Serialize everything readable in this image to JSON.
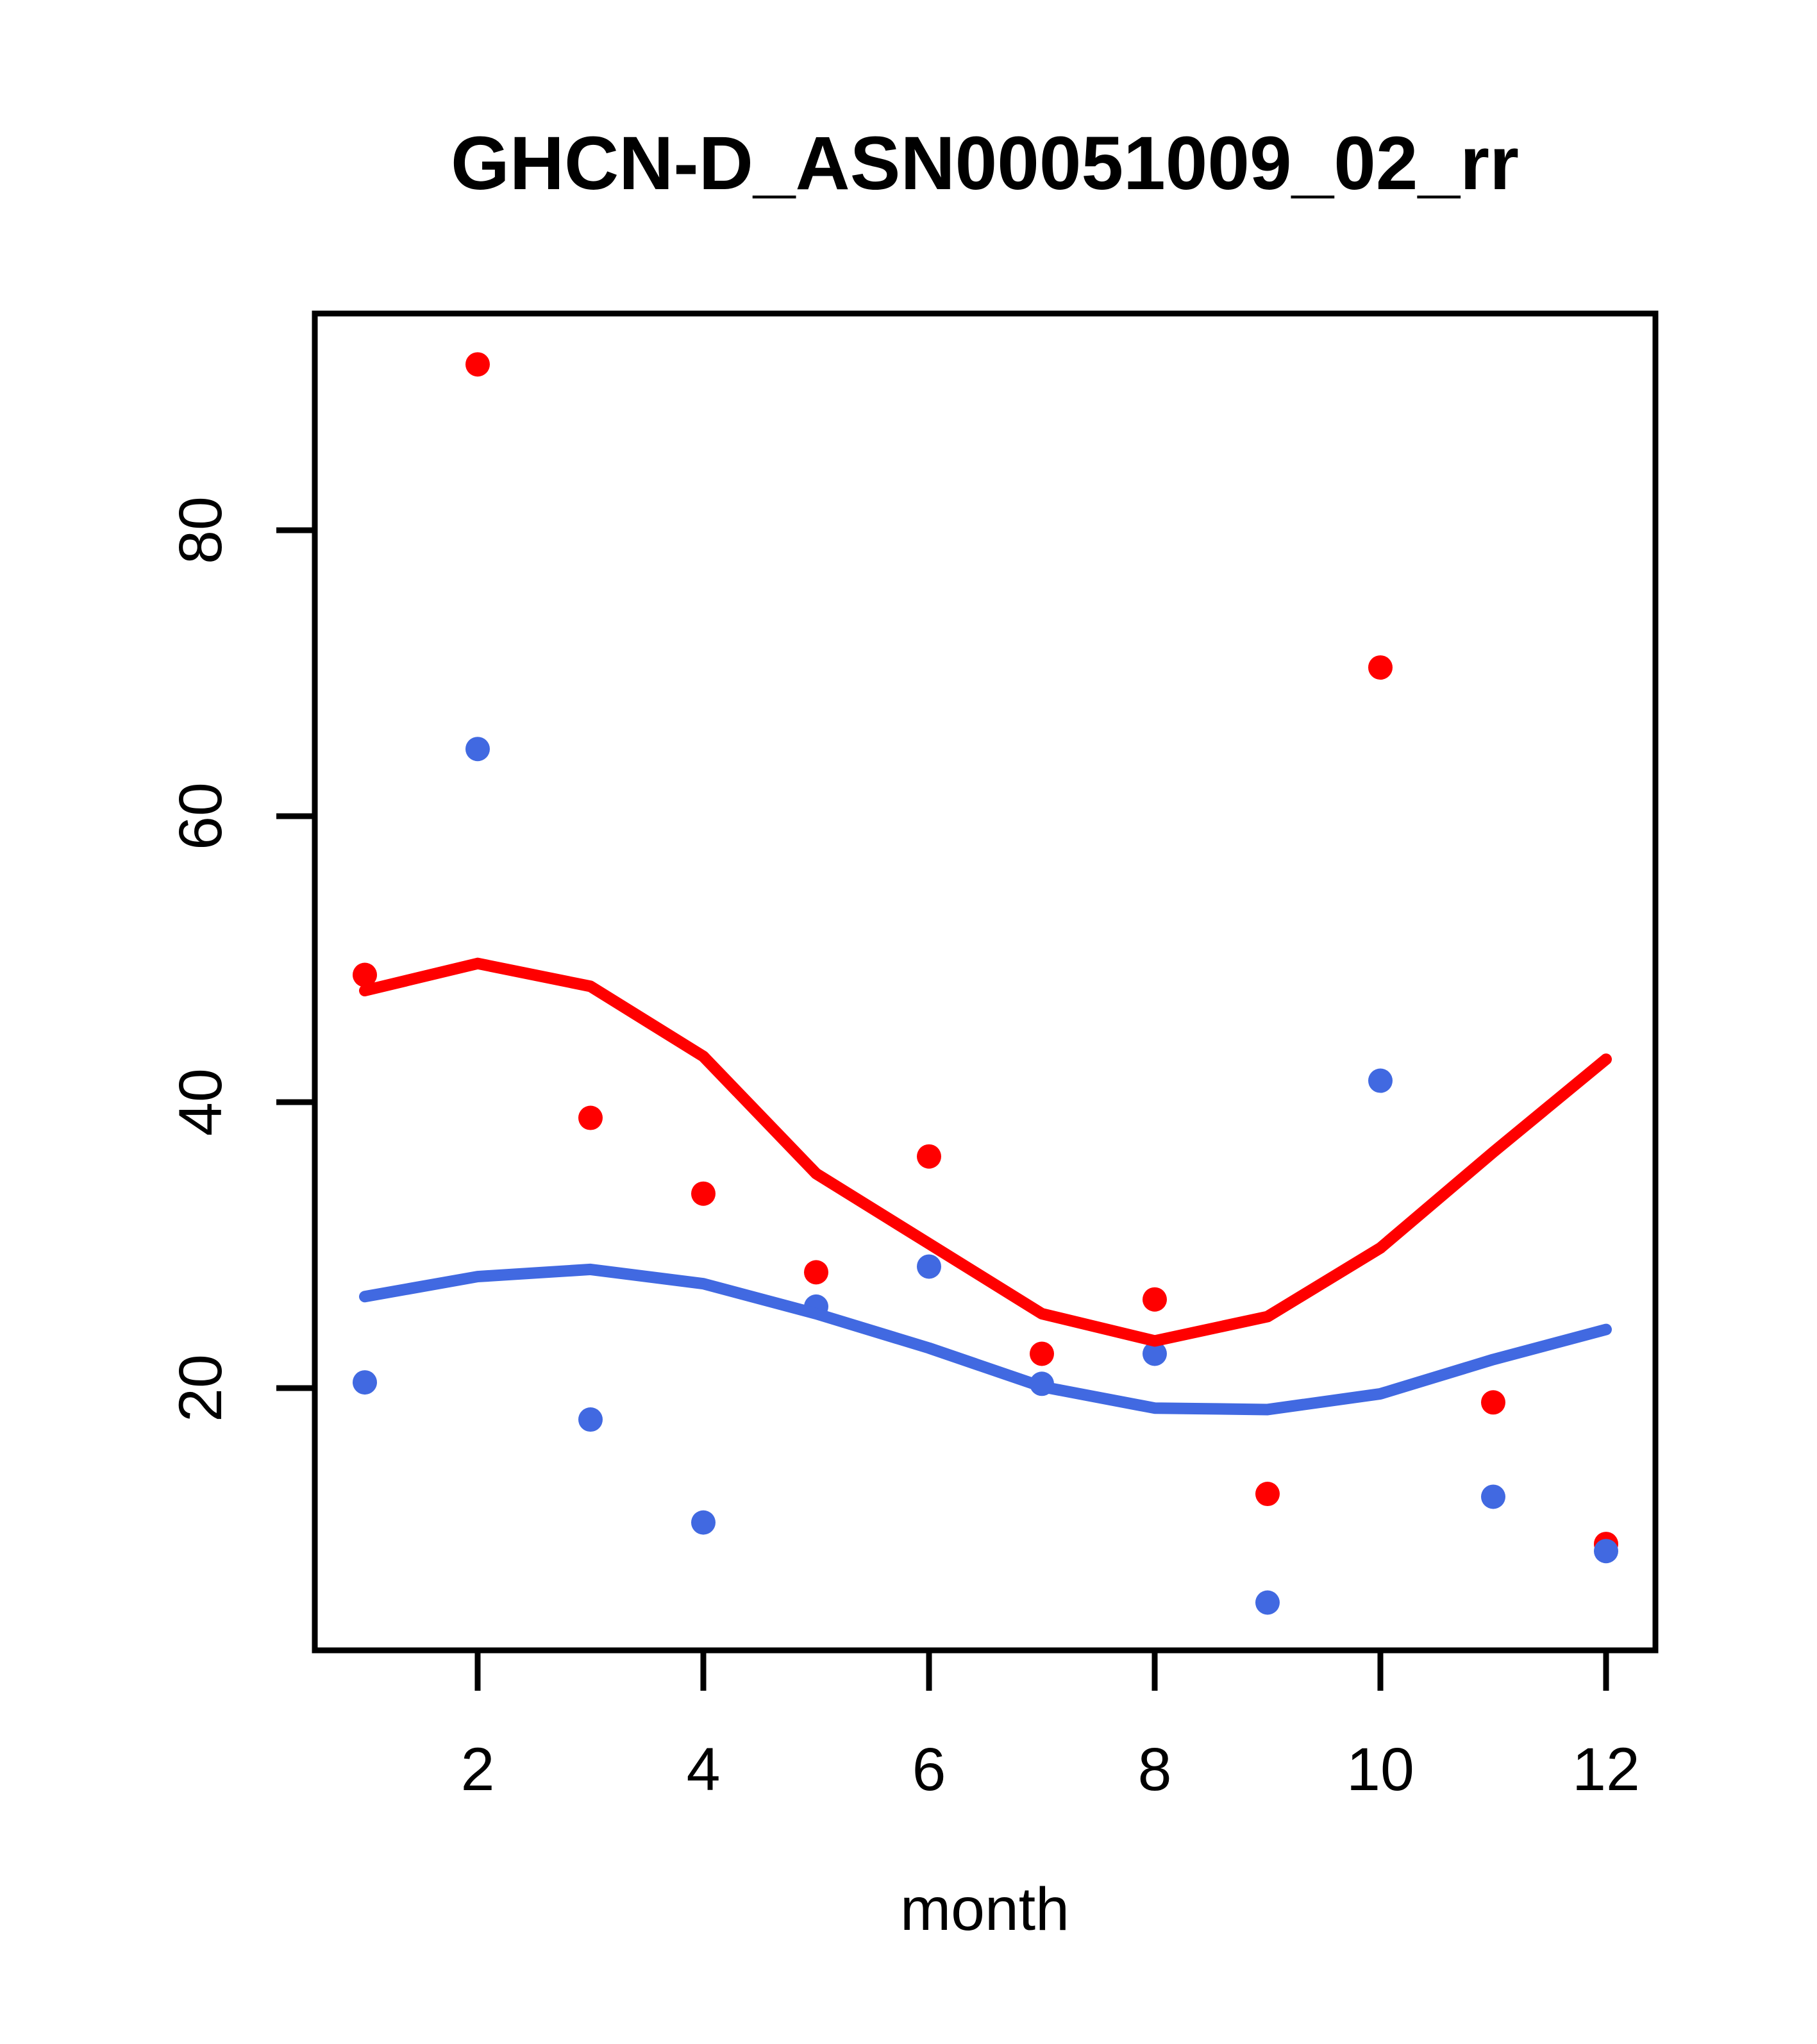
{
  "page": {
    "background": "#FFFFFF"
  },
  "chart_data": {
    "type": "scatter",
    "title": "GHCN-D_ASN00051009_02_rr",
    "xlabel": "month",
    "ylabel": "",
    "grid": false,
    "legend": "none",
    "x": [
      1,
      2,
      3,
      4,
      5,
      6,
      7,
      8,
      9,
      10,
      11,
      12
    ],
    "x_axis": {
      "ticks": [
        2,
        4,
        6,
        8,
        10,
        12
      ],
      "range": [
        0.56,
        12.44
      ]
    },
    "y_axis": {
      "ticks": [
        20,
        40,
        60,
        80
      ],
      "range": [
        1.7,
        95.3
      ]
    },
    "colors": {
      "red": "#FF0000",
      "blue": "#4169E1",
      "frame": "#000000"
    },
    "series": [
      {
        "name": "red-observations",
        "type": "points",
        "color": "#FF0000",
        "values": [
          48.9,
          91.6,
          38.9,
          33.6,
          28.1,
          36.2,
          22.4,
          26.2,
          12.6,
          70.4,
          19.0,
          9.1
        ]
      },
      {
        "name": "blue-observations",
        "type": "points",
        "color": "#4169E1",
        "values": [
          20.4,
          64.7,
          17.8,
          10.6,
          25.7,
          28.5,
          20.3,
          22.4,
          5.0,
          41.5,
          12.4,
          8.6
        ]
      },
      {
        "name": "red-loess-smooth",
        "type": "line",
        "color": "#FF0000",
        "values": [
          47.8,
          49.7,
          48.1,
          43.2,
          35.0,
          30.1,
          25.2,
          23.3,
          25.0,
          29.8,
          36.5,
          43.0
        ]
      },
      {
        "name": "blue-loess-smooth",
        "type": "line",
        "color": "#4169E1",
        "values": [
          26.4,
          27.8,
          28.3,
          27.3,
          25.2,
          22.8,
          20.1,
          18.6,
          18.5,
          19.6,
          22.0,
          24.1
        ]
      }
    ]
  }
}
